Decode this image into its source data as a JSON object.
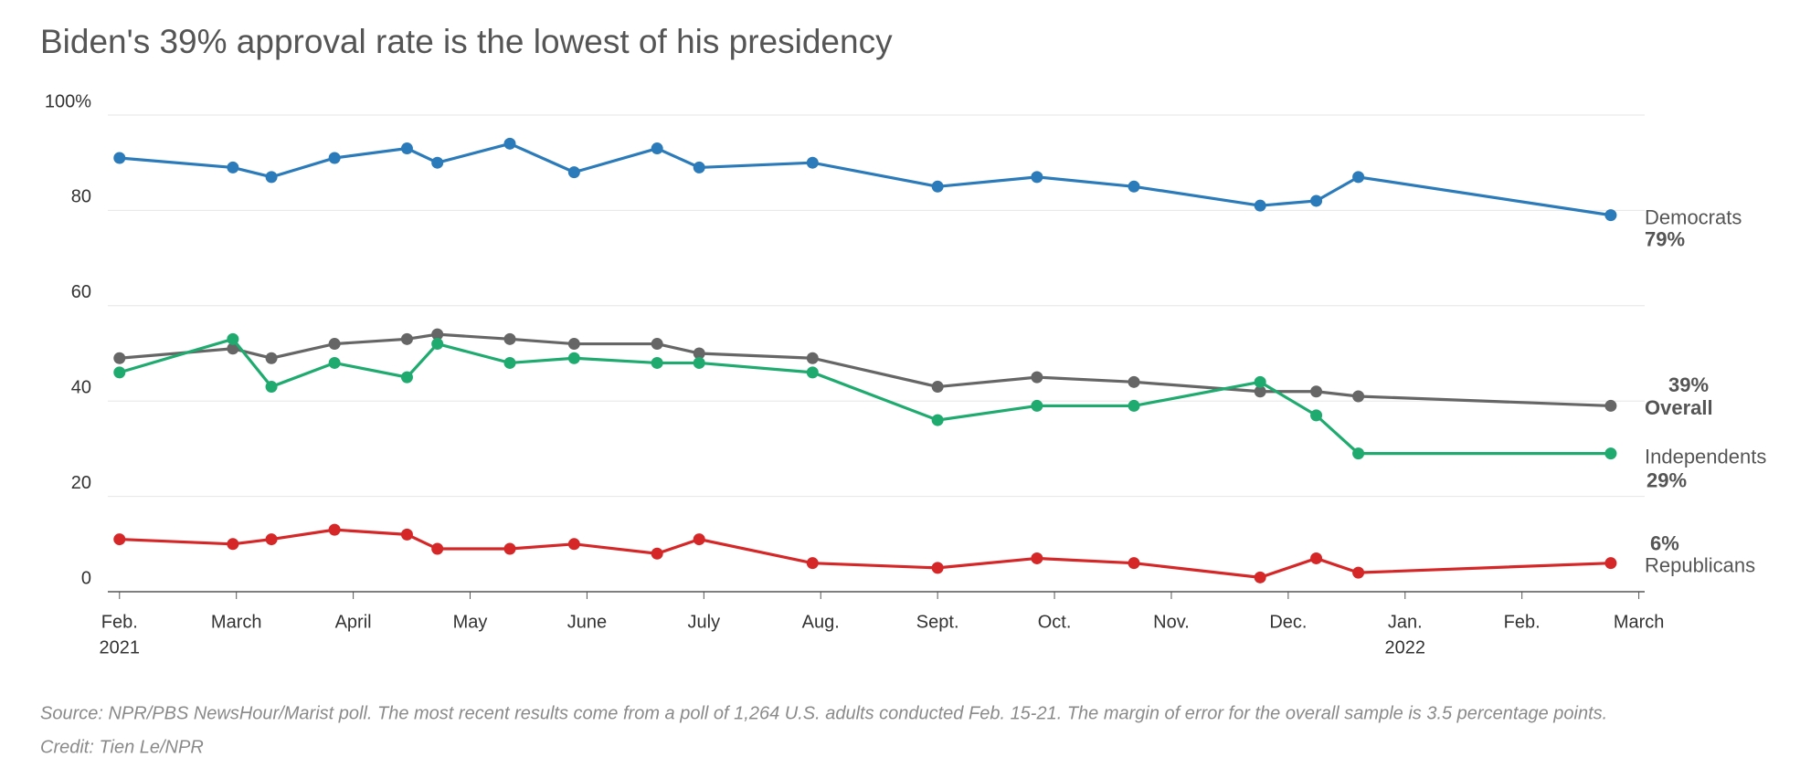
{
  "chart_data": {
    "type": "line",
    "title": "Biden's 39% approval rate is the lowest of his presidency",
    "source": "Source: NPR/PBS NewsHour/Marist poll. The most recent results come from a poll of 1,264 U.S. adults conducted Feb. 15-21. The margin of error for the overall sample is 3.5 percentage points.",
    "credit": "Credit: Tien Le/NPR",
    "x": [
      0,
      0.97,
      1.3,
      1.84,
      2.46,
      2.72,
      3.34,
      3.89,
      4.6,
      4.96,
      5.93,
      7.0,
      7.85,
      8.68,
      9.76,
      10.24,
      10.6,
      12.76
    ],
    "xlim": [
      -0.1,
      13.05
    ],
    "xticks": [
      {
        "value": 0,
        "label": "Feb."
      },
      {
        "value": 1,
        "label": "March"
      },
      {
        "value": 2,
        "label": "April"
      },
      {
        "value": 3,
        "label": "May"
      },
      {
        "value": 4,
        "label": "June"
      },
      {
        "value": 5,
        "label": "July"
      },
      {
        "value": 6,
        "label": "Aug."
      },
      {
        "value": 7,
        "label": "Sept."
      },
      {
        "value": 8,
        "label": "Oct."
      },
      {
        "value": 9,
        "label": "Nov."
      },
      {
        "value": 10,
        "label": "Dec."
      },
      {
        "value": 11,
        "label": "Jan."
      },
      {
        "value": 12,
        "label": "Feb."
      },
      {
        "value": 13,
        "label": "March"
      }
    ],
    "year_labels": [
      {
        "value": 0,
        "label": "2021"
      },
      {
        "value": 11,
        "label": "2022"
      }
    ],
    "ylim": [
      0,
      100
    ],
    "yticks": [
      0,
      20,
      40,
      60,
      80,
      {
        "value": 100,
        "label": "100%"
      }
    ],
    "grid": true,
    "series": [
      {
        "name": "Democrats",
        "color": "#2b7bba",
        "values": [
          91,
          89,
          87,
          91,
          93,
          90,
          94,
          88,
          93,
          89,
          90,
          85,
          87,
          85,
          81,
          82,
          87,
          79
        ],
        "value_labels": [
          null,
          null,
          null,
          null,
          null,
          null,
          null,
          null,
          null,
          null,
          null,
          null,
          null,
          null,
          null,
          null,
          null,
          "79%"
        ]
      },
      {
        "name": "Overall",
        "color": "#666666",
        "values": [
          49,
          51,
          49,
          52,
          53,
          54,
          53,
          52,
          52,
          50,
          49,
          43,
          45,
          44,
          42,
          42,
          41,
          39
        ],
        "value_labels": [
          null,
          null,
          null,
          null,
          null,
          null,
          null,
          null,
          null,
          null,
          null,
          null,
          null,
          null,
          null,
          null,
          null,
          "39%"
        ]
      },
      {
        "name": "Independents",
        "color": "#1fab6f",
        "values": [
          46,
          53,
          43,
          48,
          45,
          52,
          48,
          49,
          48,
          48,
          46,
          36,
          39,
          39,
          44,
          37,
          29,
          29
        ],
        "value_labels": [
          null,
          null,
          null,
          null,
          null,
          null,
          null,
          null,
          null,
          null,
          null,
          null,
          null,
          null,
          null,
          null,
          null,
          "29%"
        ]
      },
      {
        "name": "Republicans",
        "color": "#d62728",
        "values": [
          11,
          10,
          11,
          13,
          12,
          9,
          9,
          10,
          8,
          11,
          6,
          5,
          7,
          6,
          3,
          7,
          4,
          6
        ],
        "value_labels": [
          null,
          null,
          null,
          null,
          null,
          null,
          null,
          null,
          null,
          null,
          null,
          null,
          null,
          null,
          null,
          null,
          null,
          "6%"
        ]
      }
    ]
  }
}
